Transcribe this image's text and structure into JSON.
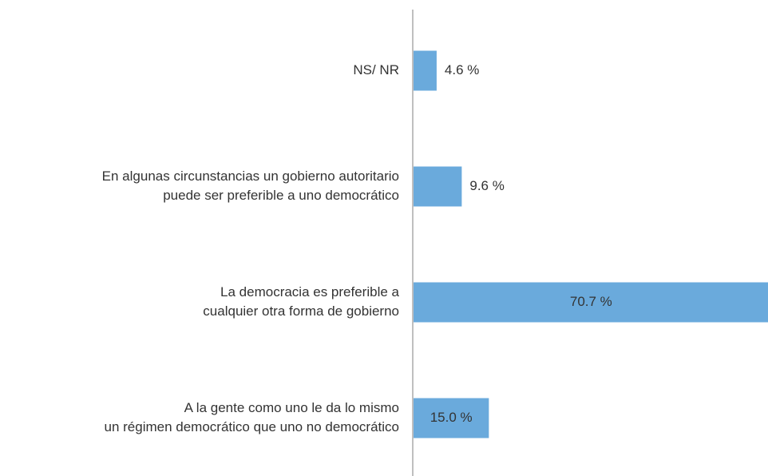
{
  "chart_data": {
    "type": "bar",
    "orientation": "horizontal",
    "categories": [
      [
        "NS/ NR"
      ],
      [
        "En algunas circunstancias un gobierno autoritario",
        "puede ser preferible a uno democrático"
      ],
      [
        "La democracia es preferible a",
        "cualquier otra forma de gobierno"
      ],
      [
        "A la gente como uno le da lo mismo",
        "un régimen democrático que uno no democrático"
      ]
    ],
    "values": [
      4.6,
      9.6,
      70.7,
      15.0
    ],
    "value_labels": [
      "4.6 %",
      "9.6 %",
      "70.7 %",
      "15.0 %"
    ],
    "color": "#6aaadc"
  }
}
